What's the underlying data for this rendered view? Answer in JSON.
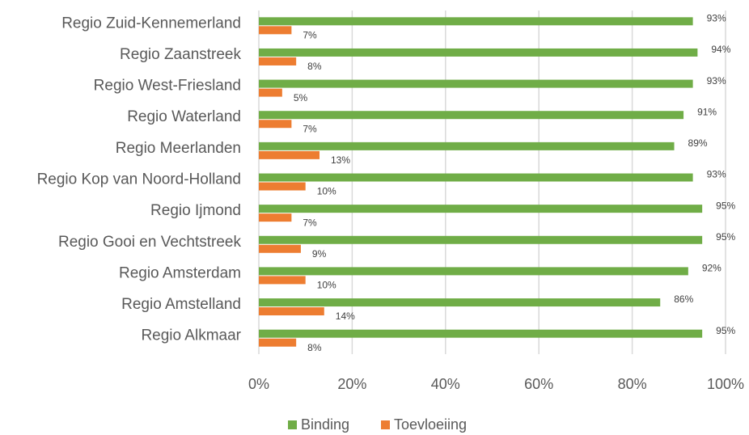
{
  "chart_data": {
    "type": "bar",
    "orientation": "horizontal",
    "categories": [
      "Regio Zuid-Kennemerland",
      "Regio Zaanstreek",
      "Regio West-Friesland",
      "Regio Waterland",
      "Regio Meerlanden",
      "Regio Kop van Noord-Holland",
      "Regio Ijmond",
      "Regio Gooi en Vechtstreek",
      "Regio Amsterdam",
      "Regio Amstelland",
      "Regio Alkmaar"
    ],
    "series": [
      {
        "name": "Binding",
        "color": "#70ad47",
        "values": [
          93,
          94,
          93,
          91,
          89,
          93,
          95,
          95,
          92,
          86,
          95
        ],
        "value_labels": [
          "93%",
          "94%",
          "93%",
          "91%",
          "89%",
          "93%",
          "95%",
          "95%",
          "92%",
          "86%",
          "95%"
        ]
      },
      {
        "name": "Toevloeiing",
        "color": "#ed7d31",
        "values": [
          7,
          8,
          5,
          7,
          13,
          10,
          7,
          9,
          10,
          14,
          8
        ],
        "value_labels": [
          "7%",
          "8%",
          "5%",
          "7%",
          "13%",
          "10%",
          "7%",
          "9%",
          "10%",
          "14%",
          "8%"
        ]
      }
    ],
    "xlim": [
      0,
      100
    ],
    "xticks": [
      {
        "value": 0,
        "label": "0%"
      },
      {
        "value": 20,
        "label": "20%"
      },
      {
        "value": 40,
        "label": "40%"
      },
      {
        "value": 60,
        "label": "60%"
      },
      {
        "value": 80,
        "label": "80%"
      },
      {
        "value": 100,
        "label": "100%"
      }
    ],
    "grid": true,
    "legend": "bottom"
  }
}
